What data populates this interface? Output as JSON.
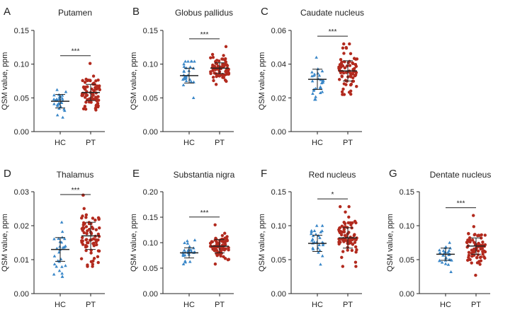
{
  "colors": {
    "hc": "#3a87c8",
    "pt": "#b22a1e",
    "axis": "#222222",
    "text": "#222222"
  },
  "icons": {
    "hc": "triangle-marker-icon",
    "pt": "circle-marker-icon"
  },
  "chart_data": [
    {
      "type": "scatter",
      "panel": "A",
      "title": "Putamen",
      "ylabel": "QSM value, ppm",
      "categories": [
        "HC",
        "PT"
      ],
      "yticks": [
        "0.00",
        "0.05",
        "0.10",
        "0.15"
      ],
      "ylim": [
        0,
        0.15
      ],
      "significance": "***",
      "series": [
        {
          "name": "HC",
          "mean": 0.045,
          "sd": 0.01,
          "min": 0.021,
          "max": 0.062
        },
        {
          "name": "PT",
          "mean": 0.058,
          "sd": 0.012,
          "min": 0.032,
          "max": 0.101
        }
      ]
    },
    {
      "type": "scatter",
      "panel": "B",
      "title": "Globus pallidus",
      "ylabel": "QSM value, ppm",
      "categories": [
        "HC",
        "PT"
      ],
      "yticks": [
        "0.00",
        "0.05",
        "0.10",
        "0.15"
      ],
      "ylim": [
        0,
        0.15
      ],
      "significance": "***",
      "series": [
        {
          "name": "HC",
          "mean": 0.083,
          "sd": 0.011,
          "min": 0.05,
          "max": 0.104
        },
        {
          "name": "PT",
          "mean": 0.094,
          "sd": 0.008,
          "min": 0.07,
          "max": 0.126
        }
      ]
    },
    {
      "type": "scatter",
      "panel": "C",
      "title": "Caudate nucleus",
      "ylabel": "QSM value, ppm",
      "categories": [
        "HC",
        "PT"
      ],
      "yticks": [
        "0.00",
        "0.02",
        "0.04",
        "0.06"
      ],
      "ylim": [
        0,
        0.06
      ],
      "significance": "***",
      "series": [
        {
          "name": "HC",
          "mean": 0.031,
          "sd": 0.006,
          "min": 0.019,
          "max": 0.044
        },
        {
          "name": "PT",
          "mean": 0.036,
          "sd": 0.006,
          "min": 0.022,
          "max": 0.052
        }
      ]
    },
    {
      "type": "scatter",
      "panel": "D",
      "title": "Thalamus",
      "ylabel": "QSM value, ppm",
      "categories": [
        "HC",
        "PT"
      ],
      "yticks": [
        "0.00",
        "0.01",
        "0.02",
        "0.03"
      ],
      "ylim": [
        0,
        0.03
      ],
      "significance": "***",
      "series": [
        {
          "name": "HC",
          "mean": 0.013,
          "sd": 0.0035,
          "min": 0.005,
          "max": 0.021
        },
        {
          "name": "PT",
          "mean": 0.017,
          "sd": 0.004,
          "min": 0.008,
          "max": 0.029
        }
      ]
    },
    {
      "type": "scatter",
      "panel": "E",
      "title": "Substantia nigra",
      "ylabel": "QSM value, ppm",
      "categories": [
        "HC",
        "PT"
      ],
      "yticks": [
        "0.00",
        "0.05",
        "0.10",
        "0.15",
        "0.20"
      ],
      "ylim": [
        0,
        0.2
      ],
      "significance": "***",
      "series": [
        {
          "name": "HC",
          "mean": 0.08,
          "sd": 0.01,
          "min": 0.058,
          "max": 0.105
        },
        {
          "name": "PT",
          "mean": 0.093,
          "sd": 0.013,
          "min": 0.058,
          "max": 0.135
        }
      ]
    },
    {
      "type": "scatter",
      "panel": "F",
      "title": "Red nucleus",
      "ylabel": "QSM value, ppm",
      "categories": [
        "HC",
        "PT"
      ],
      "yticks": [
        "0.00",
        "0.05",
        "0.10",
        "0.15"
      ],
      "ylim": [
        0,
        0.15
      ],
      "significance": "*",
      "series": [
        {
          "name": "HC",
          "mean": 0.074,
          "sd": 0.012,
          "min": 0.043,
          "max": 0.1
        },
        {
          "name": "PT",
          "mean": 0.082,
          "sd": 0.015,
          "min": 0.04,
          "max": 0.128
        }
      ]
    },
    {
      "type": "scatter",
      "panel": "G",
      "title": "Dentate nucleus",
      "ylabel": "QSM value, ppm",
      "categories": [
        "HC",
        "PT"
      ],
      "yticks": [
        "0.00",
        "0.05",
        "0.10",
        "0.15"
      ],
      "ylim": [
        0,
        0.15
      ],
      "significance": "***",
      "series": [
        {
          "name": "HC",
          "mean": 0.058,
          "sd": 0.009,
          "min": 0.032,
          "max": 0.075
        },
        {
          "name": "PT",
          "mean": 0.07,
          "sd": 0.012,
          "min": 0.027,
          "max": 0.115
        }
      ]
    }
  ]
}
